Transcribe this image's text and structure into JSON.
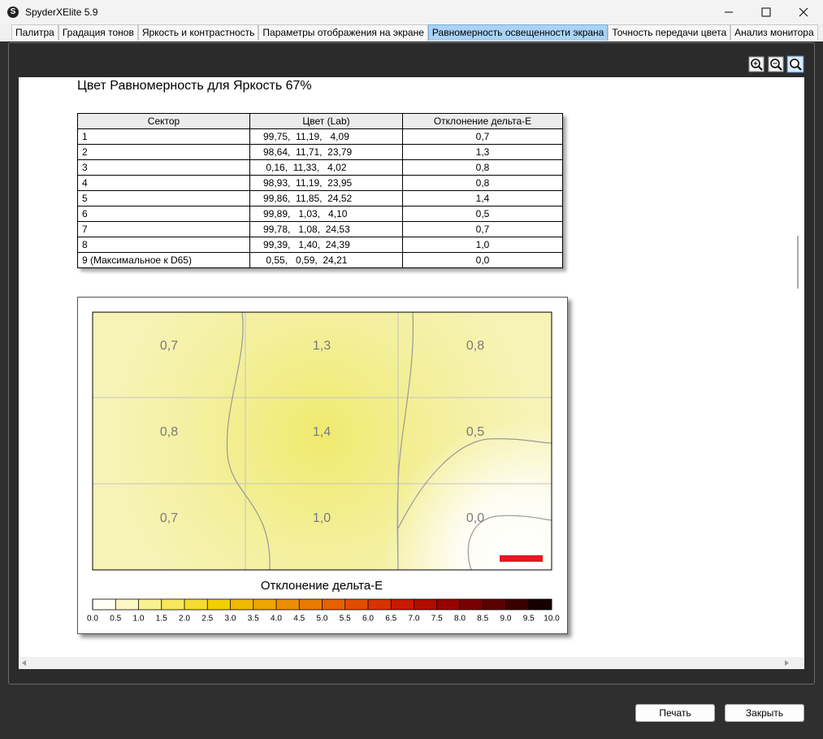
{
  "window": {
    "icon": "S",
    "title": "SpyderXElite 5.9"
  },
  "tabs": [
    "Палитра",
    "Градация тонов",
    "Яркость и контрастность",
    "Параметры отображения на экране",
    "Равномерность освещенности экрана",
    "Точность передачи цвета",
    "Анализ монитора"
  ],
  "active_tab": 4,
  "report": {
    "heading": "Цвет Равномерность для Яркость 67%",
    "table": {
      "header": [
        "Сектор",
        "Цвет (Lab)",
        "Отклонение дельта-E"
      ],
      "rows": [
        [
          "1",
          "99,75,  11,19,   4,09",
          "0,7"
        ],
        [
          "2",
          "98,64,  11,71,  23,79",
          "1,3"
        ],
        [
          "3",
          " 0,16,  11,33,   4,02",
          "0,8"
        ],
        [
          "4",
          "98,93,  11,19,  23,95",
          "0,8"
        ],
        [
          "5",
          "99,86,  11,85,  24,52",
          "1,4"
        ],
        [
          "6",
          "99,89,   1,03,   4,10",
          "0,5"
        ],
        [
          "7",
          "99,78,   1,08,  24,53",
          "0,7"
        ],
        [
          "8",
          "99,39,   1,40,  24,39",
          "1,0"
        ],
        [
          "9 (Максимальное к D65)",
          " 0,55,   0,59,  24,21",
          "0,0"
        ]
      ]
    },
    "heatmap": {
      "legend_title": "Отклонение дельта-E",
      "colorbar_labels": [
        "0.0",
        "0.5",
        "1.0",
        "1.5",
        "2.0",
        "2.5",
        "3.0",
        "3.5",
        "4.0",
        "4.5",
        "5.0",
        "5.5",
        "6.0",
        "6.5",
        "7.0",
        "7.5",
        "8.0",
        "8.5",
        "9.0",
        "9.5",
        "10.0"
      ],
      "colorbar_colors": [
        "#fffff2",
        "#fcf8c6",
        "#f9f08e",
        "#f6e85e",
        "#f3dc2f",
        "#f1cf00",
        "#efba00",
        "#eda500",
        "#eb8f00",
        "#e97a00",
        "#e66200",
        "#e24c00",
        "#d83200",
        "#c81a00",
        "#b00c00",
        "#960400",
        "#780000",
        "#5a0000",
        "#3a0000",
        "#160000"
      ]
    }
  },
  "buttons": [
    "Печать",
    "Закрыть"
  ]
}
